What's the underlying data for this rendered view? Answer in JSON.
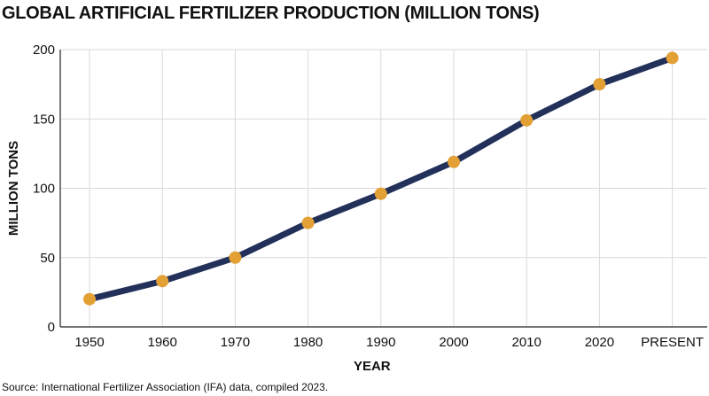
{
  "title": "GLOBAL ARTIFICIAL FERTILIZER PRODUCTION (MILLION TONS)",
  "source": "Source: International Fertilizer Association (IFA) data, compiled 2023.",
  "colors": {
    "line": "#22305a",
    "marker": "#e3a035",
    "grid": "#d9d9d9",
    "axis": "#222222"
  },
  "chart_data": {
    "type": "line",
    "title": "GLOBAL ARTIFICIAL FERTILIZER PRODUCTION (MILLION TONS)",
    "xlabel": "YEAR",
    "ylabel": "MILLION TONS",
    "categories": [
      "1950",
      "1960",
      "1970",
      "1980",
      "1990",
      "2000",
      "2010",
      "2020",
      "PRESENT"
    ],
    "values": [
      20,
      33,
      50,
      75,
      96,
      119,
      149,
      175,
      194
    ],
    "ylim": [
      0,
      200
    ],
    "yticks": [
      0,
      50,
      100,
      150,
      200
    ],
    "grid": true,
    "legend": "none"
  }
}
